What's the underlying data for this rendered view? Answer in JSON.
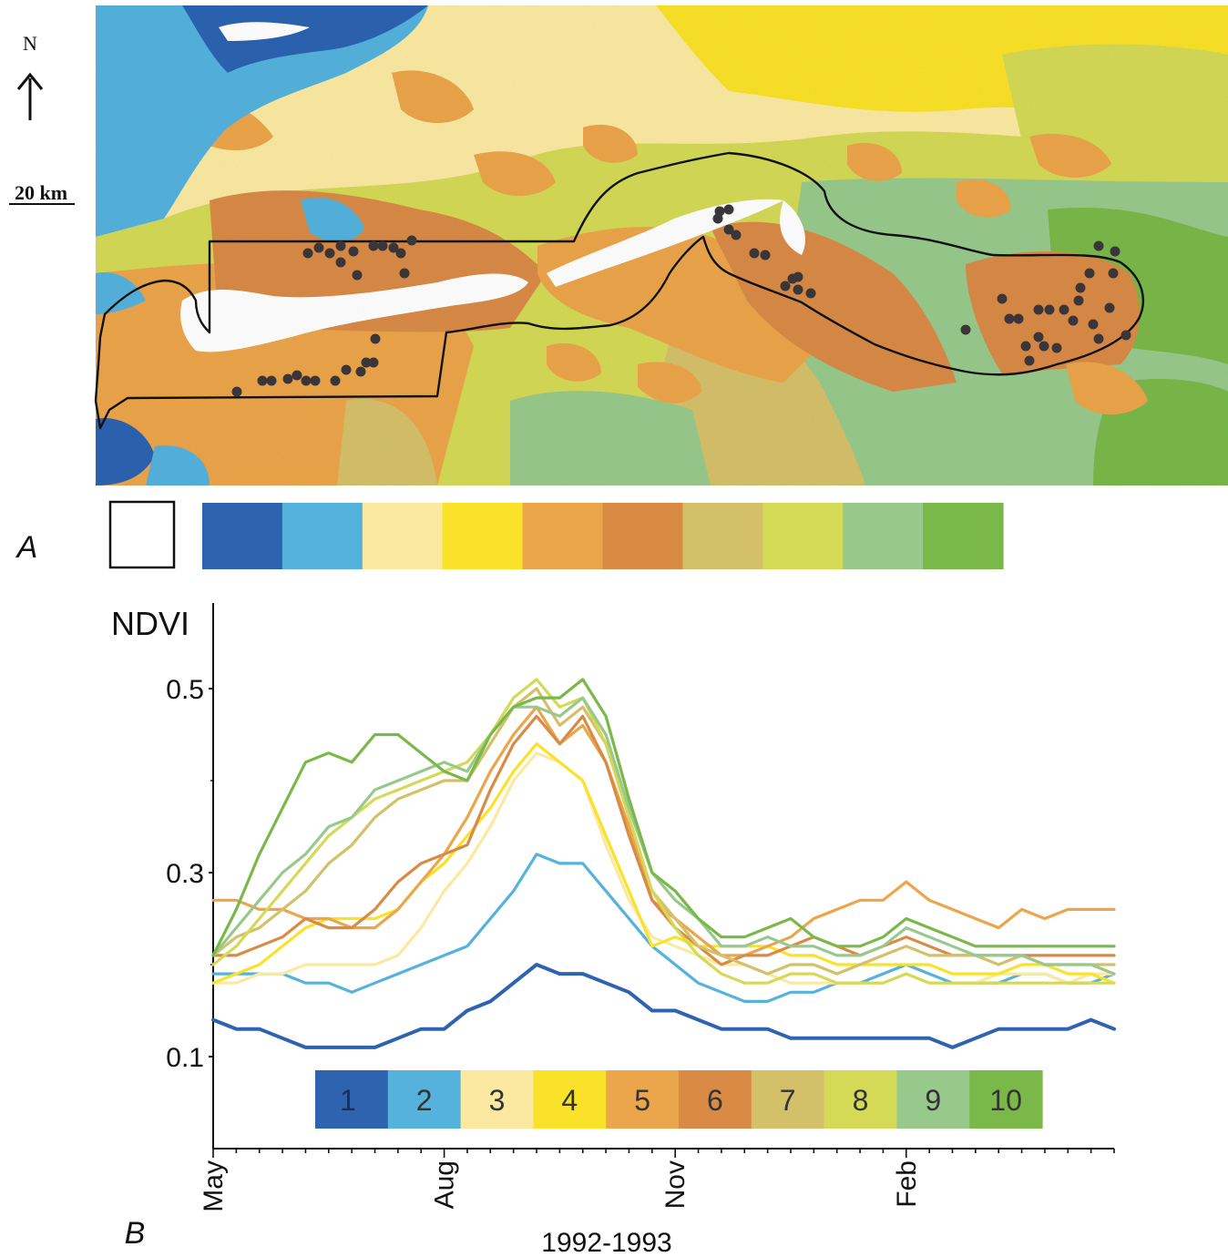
{
  "panel_a": {
    "label": "A",
    "north_label": "N",
    "scale_label": "20 km",
    "legend_colors": [
      "#ffffff",
      "#2e63b0",
      "#55b2dd",
      "#fbe9a1",
      "#fae22b",
      "#eba54b",
      "#d98b46",
      "#d5c06a",
      "#d4d956",
      "#98c98c",
      "#7ab849"
    ]
  },
  "panel_b": {
    "label": "B",
    "legend_classes": [
      "1",
      "2",
      "3",
      "4",
      "5",
      "6",
      "7",
      "8",
      "9",
      "10"
    ]
  },
  "chart_data": {
    "type": "line",
    "title": "",
    "ylabel": "NDVI",
    "xlabel": "1992-1993",
    "ylim": [
      0,
      0.6
    ],
    "xlim": [
      0,
      39
    ],
    "yticks": [
      0.1,
      0.3,
      0.5
    ],
    "ytick_labels": [
      "0.1",
      "0.3",
      "0.5"
    ],
    "xtick_positions": [
      0,
      10,
      20,
      30
    ],
    "xtick_labels": [
      "May",
      "Aug",
      "Nov",
      "Feb"
    ],
    "grid": false,
    "legend_position": "bottom",
    "series": [
      {
        "name": "1",
        "color": "#2e63b0",
        "values": [
          0.14,
          0.13,
          0.13,
          0.12,
          0.11,
          0.11,
          0.11,
          0.11,
          0.12,
          0.13,
          0.13,
          0.15,
          0.16,
          0.18,
          0.2,
          0.19,
          0.19,
          0.18,
          0.17,
          0.15,
          0.15,
          0.14,
          0.13,
          0.13,
          0.13,
          0.12,
          0.12,
          0.12,
          0.12,
          0.12,
          0.12,
          0.12,
          0.11,
          0.12,
          0.13,
          0.13,
          0.13,
          0.13,
          0.14,
          0.13
        ]
      },
      {
        "name": "2",
        "color": "#55b2dd",
        "values": [
          0.19,
          0.19,
          0.19,
          0.19,
          0.18,
          0.18,
          0.17,
          0.18,
          0.19,
          0.2,
          0.21,
          0.22,
          0.25,
          0.28,
          0.32,
          0.31,
          0.31,
          0.28,
          0.25,
          0.22,
          0.2,
          0.18,
          0.17,
          0.16,
          0.16,
          0.17,
          0.17,
          0.18,
          0.18,
          0.19,
          0.2,
          0.19,
          0.18,
          0.18,
          0.18,
          0.19,
          0.19,
          0.18,
          0.18,
          0.19
        ]
      },
      {
        "name": "3",
        "color": "#fbe9a1",
        "values": [
          0.18,
          0.18,
          0.19,
          0.19,
          0.2,
          0.2,
          0.2,
          0.2,
          0.21,
          0.24,
          0.28,
          0.31,
          0.35,
          0.4,
          0.43,
          0.42,
          0.4,
          0.33,
          0.27,
          0.23,
          0.22,
          0.21,
          0.2,
          0.2,
          0.19,
          0.18,
          0.18,
          0.18,
          0.18,
          0.18,
          0.19,
          0.18,
          0.18,
          0.18,
          0.19,
          0.19,
          0.19,
          0.18,
          0.19,
          0.19
        ]
      },
      {
        "name": "4",
        "color": "#fae22b",
        "values": [
          0.18,
          0.19,
          0.2,
          0.22,
          0.24,
          0.25,
          0.25,
          0.25,
          0.26,
          0.29,
          0.31,
          0.34,
          0.37,
          0.41,
          0.44,
          0.42,
          0.4,
          0.34,
          0.28,
          0.22,
          0.23,
          0.22,
          0.22,
          0.22,
          0.22,
          0.21,
          0.21,
          0.2,
          0.2,
          0.2,
          0.2,
          0.2,
          0.19,
          0.19,
          0.19,
          0.2,
          0.2,
          0.19,
          0.19,
          0.18
        ]
      },
      {
        "name": "5",
        "color": "#eba54b",
        "values": [
          0.27,
          0.27,
          0.26,
          0.26,
          0.25,
          0.25,
          0.24,
          0.24,
          0.26,
          0.29,
          0.32,
          0.36,
          0.41,
          0.45,
          0.48,
          0.44,
          0.46,
          0.42,
          0.35,
          0.27,
          0.25,
          0.23,
          0.21,
          0.21,
          0.22,
          0.23,
          0.25,
          0.26,
          0.27,
          0.27,
          0.29,
          0.27,
          0.26,
          0.25,
          0.24,
          0.26,
          0.25,
          0.26,
          0.26,
          0.26
        ]
      },
      {
        "name": "6",
        "color": "#d98b46",
        "values": [
          0.21,
          0.21,
          0.22,
          0.23,
          0.25,
          0.24,
          0.24,
          0.26,
          0.29,
          0.31,
          0.32,
          0.33,
          0.39,
          0.44,
          0.47,
          0.44,
          0.47,
          0.42,
          0.34,
          0.27,
          0.24,
          0.22,
          0.2,
          0.21,
          0.21,
          0.22,
          0.23,
          0.22,
          0.21,
          0.22,
          0.23,
          0.22,
          0.21,
          0.21,
          0.21,
          0.21,
          0.21,
          0.21,
          0.21,
          0.21
        ]
      },
      {
        "name": "7",
        "color": "#d5c06a",
        "values": [
          0.21,
          0.23,
          0.24,
          0.26,
          0.28,
          0.31,
          0.33,
          0.36,
          0.38,
          0.39,
          0.4,
          0.4,
          0.44,
          0.48,
          0.5,
          0.46,
          0.48,
          0.44,
          0.36,
          0.28,
          0.25,
          0.22,
          0.21,
          0.2,
          0.19,
          0.2,
          0.2,
          0.19,
          0.2,
          0.21,
          0.22,
          0.21,
          0.21,
          0.21,
          0.2,
          0.21,
          0.2,
          0.2,
          0.2,
          0.2
        ]
      },
      {
        "name": "8",
        "color": "#d4d956",
        "values": [
          0.2,
          0.22,
          0.25,
          0.28,
          0.31,
          0.34,
          0.36,
          0.38,
          0.39,
          0.4,
          0.41,
          0.42,
          0.45,
          0.49,
          0.51,
          0.48,
          0.49,
          0.44,
          0.36,
          0.28,
          0.24,
          0.21,
          0.19,
          0.18,
          0.18,
          0.19,
          0.19,
          0.18,
          0.18,
          0.18,
          0.19,
          0.18,
          0.18,
          0.18,
          0.18,
          0.18,
          0.18,
          0.18,
          0.18,
          0.18
        ]
      },
      {
        "name": "9",
        "color": "#98c98c",
        "values": [
          0.21,
          0.24,
          0.27,
          0.3,
          0.32,
          0.35,
          0.36,
          0.39,
          0.4,
          0.41,
          0.42,
          0.41,
          0.45,
          0.48,
          0.48,
          0.47,
          0.49,
          0.45,
          0.37,
          0.3,
          0.27,
          0.25,
          0.22,
          0.22,
          0.23,
          0.22,
          0.22,
          0.21,
          0.21,
          0.22,
          0.24,
          0.23,
          0.22,
          0.21,
          0.21,
          0.21,
          0.2,
          0.2,
          0.2,
          0.19
        ]
      },
      {
        "name": "10",
        "color": "#7ab849",
        "values": [
          0.21,
          0.26,
          0.32,
          0.37,
          0.42,
          0.43,
          0.42,
          0.45,
          0.45,
          0.43,
          0.41,
          0.4,
          0.45,
          0.48,
          0.49,
          0.49,
          0.51,
          0.47,
          0.38,
          0.3,
          0.28,
          0.25,
          0.23,
          0.23,
          0.24,
          0.25,
          0.23,
          0.22,
          0.22,
          0.23,
          0.25,
          0.24,
          0.23,
          0.22,
          0.22,
          0.22,
          0.22,
          0.22,
          0.22,
          0.22
        ]
      }
    ]
  }
}
